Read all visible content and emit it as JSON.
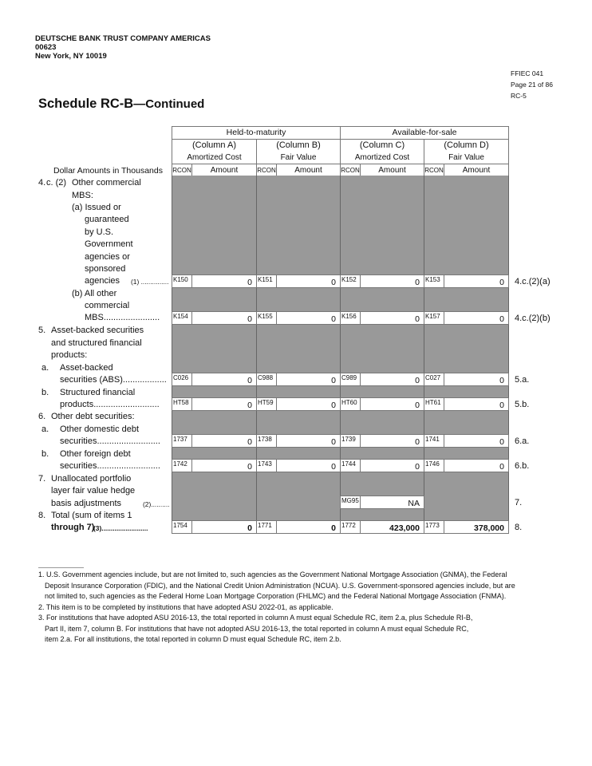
{
  "header": {
    "bank_name": "DEUTSCHE BANK TRUST COMPANY AMERICAS",
    "bank_id": "00623",
    "city": "New York, NY 10019"
  },
  "form": {
    "form_id": "FFIEC 041",
    "page": "Page 21 of 86",
    "schedule_code": "RC-5"
  },
  "title": {
    "main": "Schedule RC-B",
    "suffix": "—Continued"
  },
  "table": {
    "groups": [
      "Held-to-maturity",
      "Available-for-sale"
    ],
    "columns": [
      {
        "col": "(Column A)",
        "measure": "Amortized Cost"
      },
      {
        "col": "(Column B)",
        "measure": "Fair Value"
      },
      {
        "col": "(Column C)",
        "measure": "Amortized Cost"
      },
      {
        "col": "(Column D)",
        "measure": "Fair Value"
      }
    ],
    "units_label": "Dollar Amounts in Thousands",
    "rcon_label": "RCON",
    "amount_label": "Amount",
    "label_lines": [
      "4.",
      "c. (2)",
      "Other commercial",
      "MBS:",
      "(a) Issued or",
      "guaranteed",
      "by U.S.",
      "Government",
      "agencies or",
      "sponsored",
      "agencies",
      "(1) ...............",
      "(b) All other",
      "commercial",
      "MBS.......................",
      "5.",
      "Asset-backed securities",
      "and structured financial",
      "products:",
      "a.",
      "Asset-backed",
      "securities (ABS)..................",
      "b.",
      "Structured financial",
      "products...........................",
      "6.",
      "Other debt securities:",
      "a.",
      "Other domestic debt",
      "securities..........................",
      "b.",
      "Other foreign debt",
      "securities..........................",
      "7.",
      "Unallocated portfolio",
      "layer fair value hedge",
      "basis adjustments",
      "(2)...............",
      "8.",
      "Total (sum of items 1",
      "through 7)",
      "(3)........................."
    ],
    "rows": [
      {
        "item": "4.c.(2)(a)",
        "cells": [
          [
            "K150",
            "0"
          ],
          [
            "K151",
            "0"
          ],
          [
            "K152",
            "0"
          ],
          [
            "K153",
            "0"
          ]
        ]
      },
      {
        "item": "4.c.(2)(b)",
        "cells": [
          [
            "K154",
            "0"
          ],
          [
            "K155",
            "0"
          ],
          [
            "K156",
            "0"
          ],
          [
            "K157",
            "0"
          ]
        ]
      },
      {
        "item": "5.a.",
        "cells": [
          [
            "C026",
            "0"
          ],
          [
            "C988",
            "0"
          ],
          [
            "C989",
            "0"
          ],
          [
            "C027",
            "0"
          ]
        ]
      },
      {
        "item": "5.b.",
        "cells": [
          [
            "HT58",
            "0"
          ],
          [
            "HT59",
            "0"
          ],
          [
            "HT60",
            "0"
          ],
          [
            "HT61",
            "0"
          ]
        ]
      },
      {
        "item": "6.a.",
        "cells": [
          [
            "1737",
            "0"
          ],
          [
            "1738",
            "0"
          ],
          [
            "1739",
            "0"
          ],
          [
            "1741",
            "0"
          ]
        ]
      },
      {
        "item": "6.b.",
        "cells": [
          [
            "1742",
            "0"
          ],
          [
            "1743",
            "0"
          ],
          [
            "1744",
            "0"
          ],
          [
            "1746",
            "0"
          ]
        ]
      },
      {
        "item": "7.",
        "cells": [
          null,
          null,
          [
            "MG95",
            "NA"
          ],
          null
        ]
      },
      {
        "item": "8.",
        "cells": [
          [
            "1754",
            "0"
          ],
          [
            "1771",
            "0"
          ],
          [
            "1772",
            "423,000"
          ],
          [
            "1773",
            "378,000"
          ]
        ]
      }
    ]
  },
  "footnotes": [
    {
      "num": "1.",
      "lines": [
        "U.S. Government agencies include, but are not limited to, such agencies as the Government National Mortgage Association (GNMA), the Federal",
        "Deposit Insurance Corporation (FDIC), and the National Credit Union Administration (NCUA). U.S. Government-sponsored agencies include, but are",
        "not limited to, such agencies as the Federal Home Loan Mortgage Corporation (FHLMC) and the Federal National Mortgage Association (FNMA)."
      ]
    },
    {
      "num": "2.",
      "lines": [
        "This item is to be completed by institutions that have adopted ASU 2022-01, as applicable."
      ]
    },
    {
      "num": "3.",
      "lines": [
        "For institutions that have adopted ASU 2016-13, the total reported in column A must equal Schedule RC, item 2.a, plus Schedule RI-B,",
        "Part II, item 7, column B. For institutions that have not adopted ASU 2016-13, the total reported in column A must equal Schedule RC,",
        "item 2.a. For all institutions, the total reported in column D must equal Schedule RC, item 2.b."
      ]
    }
  ]
}
